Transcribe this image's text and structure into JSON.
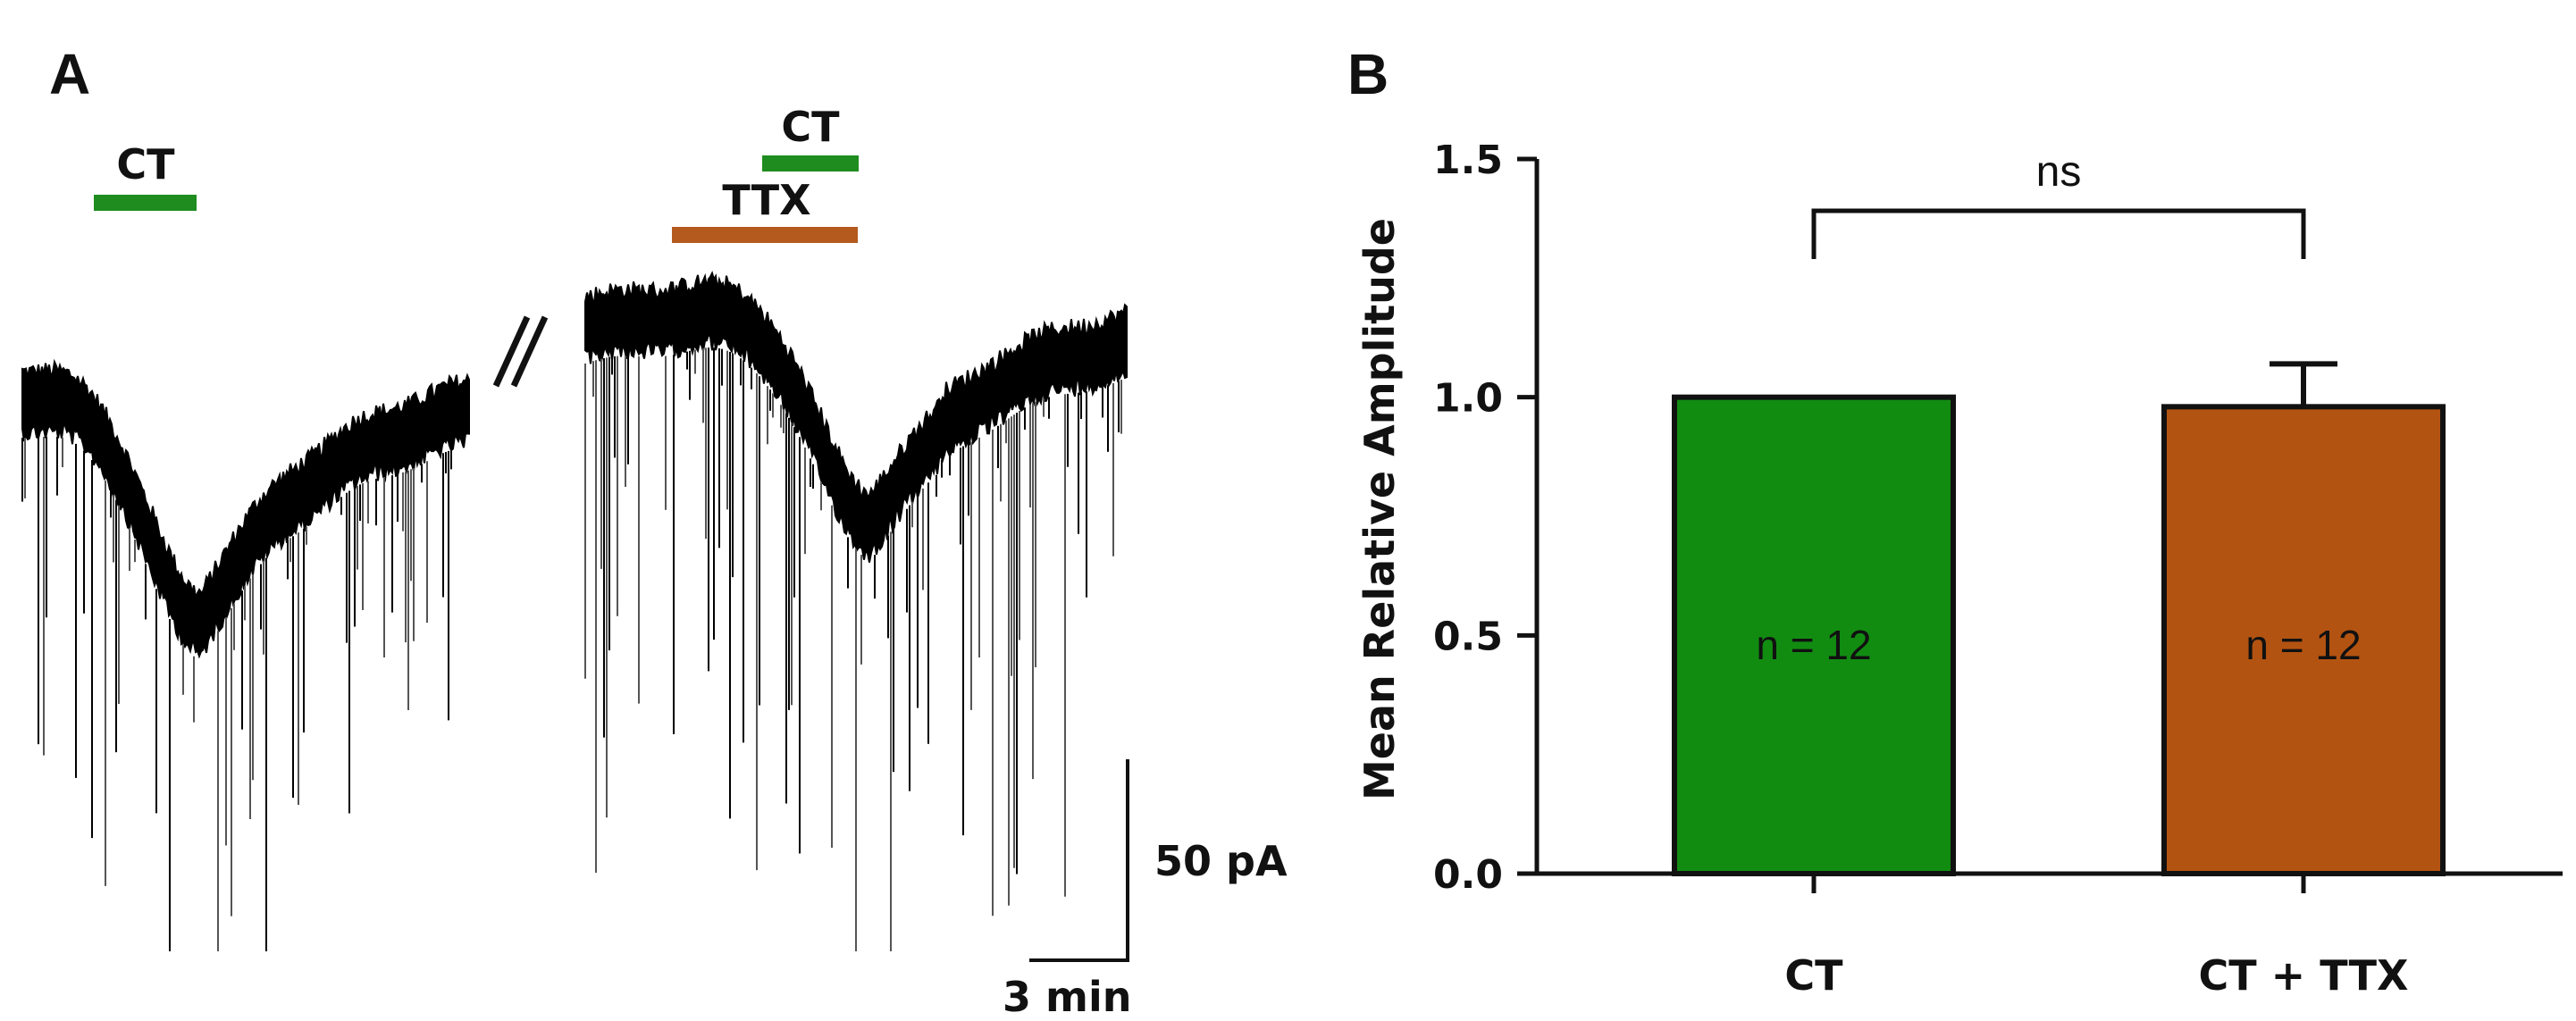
{
  "panel_a": {
    "letter": "A",
    "trace1_drug_label": "CT",
    "trace2_drug_label": "CT",
    "trace2_pre_label": "TTX",
    "break_mark": "//",
    "scale_y_label": "50 pA",
    "scale_x_label": "3 min",
    "colors": {
      "ct": "#1e8c1e",
      "ttx": "#b45a1e",
      "trace": "#000000"
    }
  },
  "panel_b": {
    "letter": "B"
  },
  "chart_data": {
    "type": "bar",
    "categories": [
      "CT",
      "CT + TTX"
    ],
    "values": [
      1.0,
      0.98
    ],
    "errors": [
      0,
      0.09
    ],
    "bar_colors": [
      "#118c11",
      "#b35311"
    ],
    "bar_labels": [
      "n = 12",
      "n = 12"
    ],
    "title": "",
    "xlabel": "",
    "ylabel": "Mean Relative Amplitude",
    "ylim": [
      0,
      1.5
    ],
    "yticks": [
      0.0,
      0.5,
      1.0,
      1.5
    ],
    "ytick_labels": [
      "0.0",
      "0.5",
      "1.0",
      "1.5"
    ],
    "grid": false,
    "significance": {
      "pair": [
        0,
        1
      ],
      "label": "ns"
    }
  }
}
